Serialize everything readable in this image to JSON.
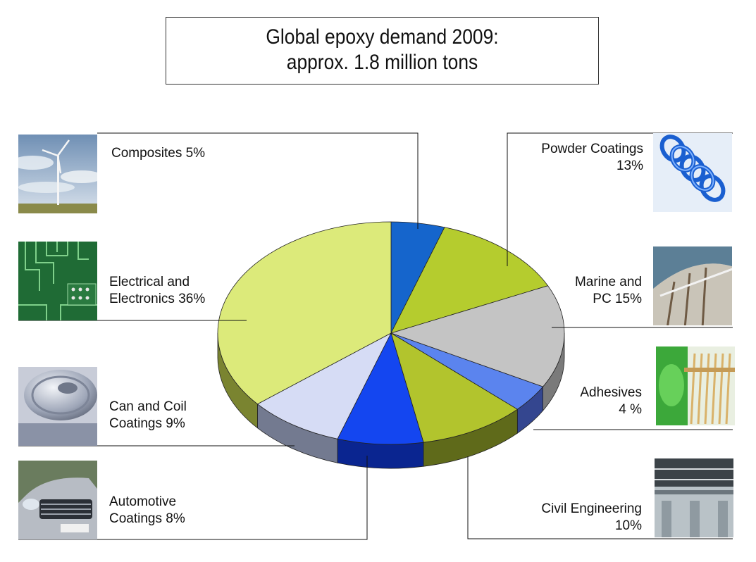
{
  "title": {
    "line1": "Global epoxy demand 2009:",
    "line2": "approx. 1.8 million tons"
  },
  "chart_data": {
    "type": "pie",
    "title": "Global epoxy demand 2009: approx. 1.8 million tons",
    "slices": [
      {
        "key": "composites",
        "label": "Composites 5%",
        "value": 5,
        "color": "#1565cc",
        "side_color": "#0c3f86",
        "line1": "Composites 5%",
        "line2": ""
      },
      {
        "key": "powder",
        "label": "Powder Coatings 13%",
        "value": 13,
        "color": "#b5cc2e",
        "side_color": "#6f7f1c",
        "line1": "Powder Coatings",
        "line2": "13%"
      },
      {
        "key": "marine",
        "label": "Marine and PC 15%",
        "value": 15,
        "color": "#c4c4c4",
        "side_color": "#7a7a7a",
        "line1": "Marine and",
        "line2": "PC 15%"
      },
      {
        "key": "adhesives",
        "label": "Adhesives 4 %",
        "value": 4,
        "color": "#5b84ee",
        "side_color": "#34468f",
        "line1": "Adhesives",
        "line2": "4 %"
      },
      {
        "key": "civil",
        "label": "Civil Engineering 10%",
        "value": 10,
        "color": "#b2c42d",
        "side_color": "#5f6a1a",
        "line1": "Civil Engineering",
        "line2": "10%"
      },
      {
        "key": "automotive",
        "label": "Automotive Coatings 8%",
        "value": 8,
        "color": "#1446f0",
        "side_color": "#0a2590",
        "line1": "Automotive",
        "line2": "Coatings 8%"
      },
      {
        "key": "can",
        "label": "Can and Coil Coatings 9%",
        "value": 9,
        "color": "#d6dcf5",
        "side_color": "#737a90",
        "line1": "Can and Coil",
        "line2": "Coatings 9%"
      },
      {
        "key": "electrical",
        "label": "Electrical and Electronics 36%",
        "value": 36,
        "color": "#dcea7a",
        "side_color": "#7a8430",
        "line1": "Electrical and",
        "line2": "Electronics 36%"
      }
    ]
  },
  "images": {
    "composites": "wind-turbine-photo",
    "electrical": "circuit-board-photo",
    "can": "beverage-can-photo",
    "automotive": "car-front-photo",
    "powder": "blue-coil-spring-photo",
    "marine": "ship-hull-photo",
    "adhesives": "laboratory-tubes-photo",
    "civil": "industrial-building-photo"
  }
}
